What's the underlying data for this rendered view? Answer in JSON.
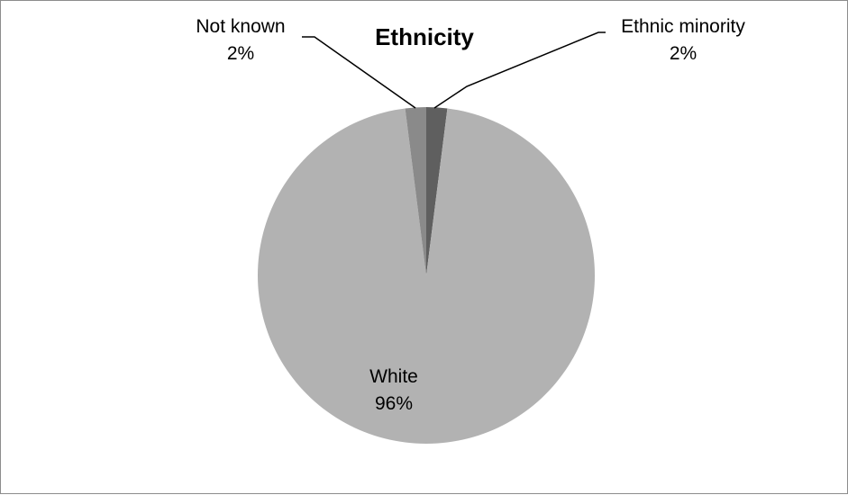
{
  "chart_data": {
    "type": "pie",
    "title": "Ethnicity",
    "slices": [
      {
        "label": "Ethnic minority",
        "value": 2,
        "value_label": "2%",
        "color": "#5f5f5f"
      },
      {
        "label": "White",
        "value": 96,
        "value_label": "96%",
        "color": "#b2b2b2"
      },
      {
        "label": "Not known",
        "value": 2,
        "value_label": "2%",
        "color": "#8a8a8a"
      }
    ],
    "legend": "none",
    "background": "#ffffff",
    "border_color": "#8c8c8c"
  }
}
